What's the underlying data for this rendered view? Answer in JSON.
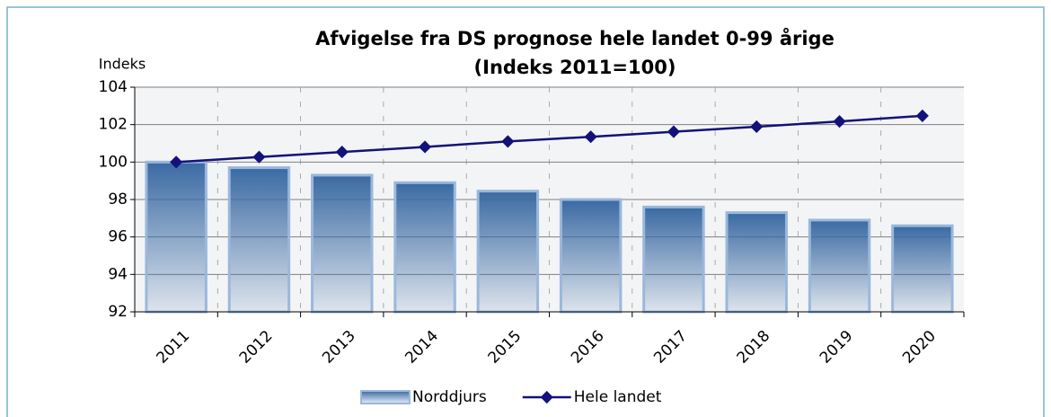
{
  "chart_data": {
    "type": "bar",
    "title": "Afvigelse fra DS prognose hele landet 0-99 årige",
    "subtitle": "(Indeks 2011=100)",
    "y_label": "Indeks",
    "categories": [
      "2011",
      "2012",
      "2013",
      "2014",
      "2015",
      "2016",
      "2017",
      "2018",
      "2019",
      "2020"
    ],
    "series": [
      {
        "name": "Norddjurs",
        "type": "bar",
        "color": "#3a6aa3",
        "values": [
          100,
          99.7,
          99.3,
          98.9,
          98.45,
          98.0,
          97.6,
          97.3,
          96.9,
          96.6
        ]
      },
      {
        "name": "Hele landet",
        "type": "line",
        "color": "#12127a",
        "values": [
          100,
          100.27,
          100.54,
          100.81,
          101.1,
          101.35,
          101.62,
          101.89,
          102.17,
          102.47
        ]
      }
    ],
    "ylim": [
      92,
      104
    ],
    "yticks": [
      92,
      94,
      96,
      98,
      100,
      102,
      104
    ],
    "grid": true,
    "legend": "bottom"
  }
}
